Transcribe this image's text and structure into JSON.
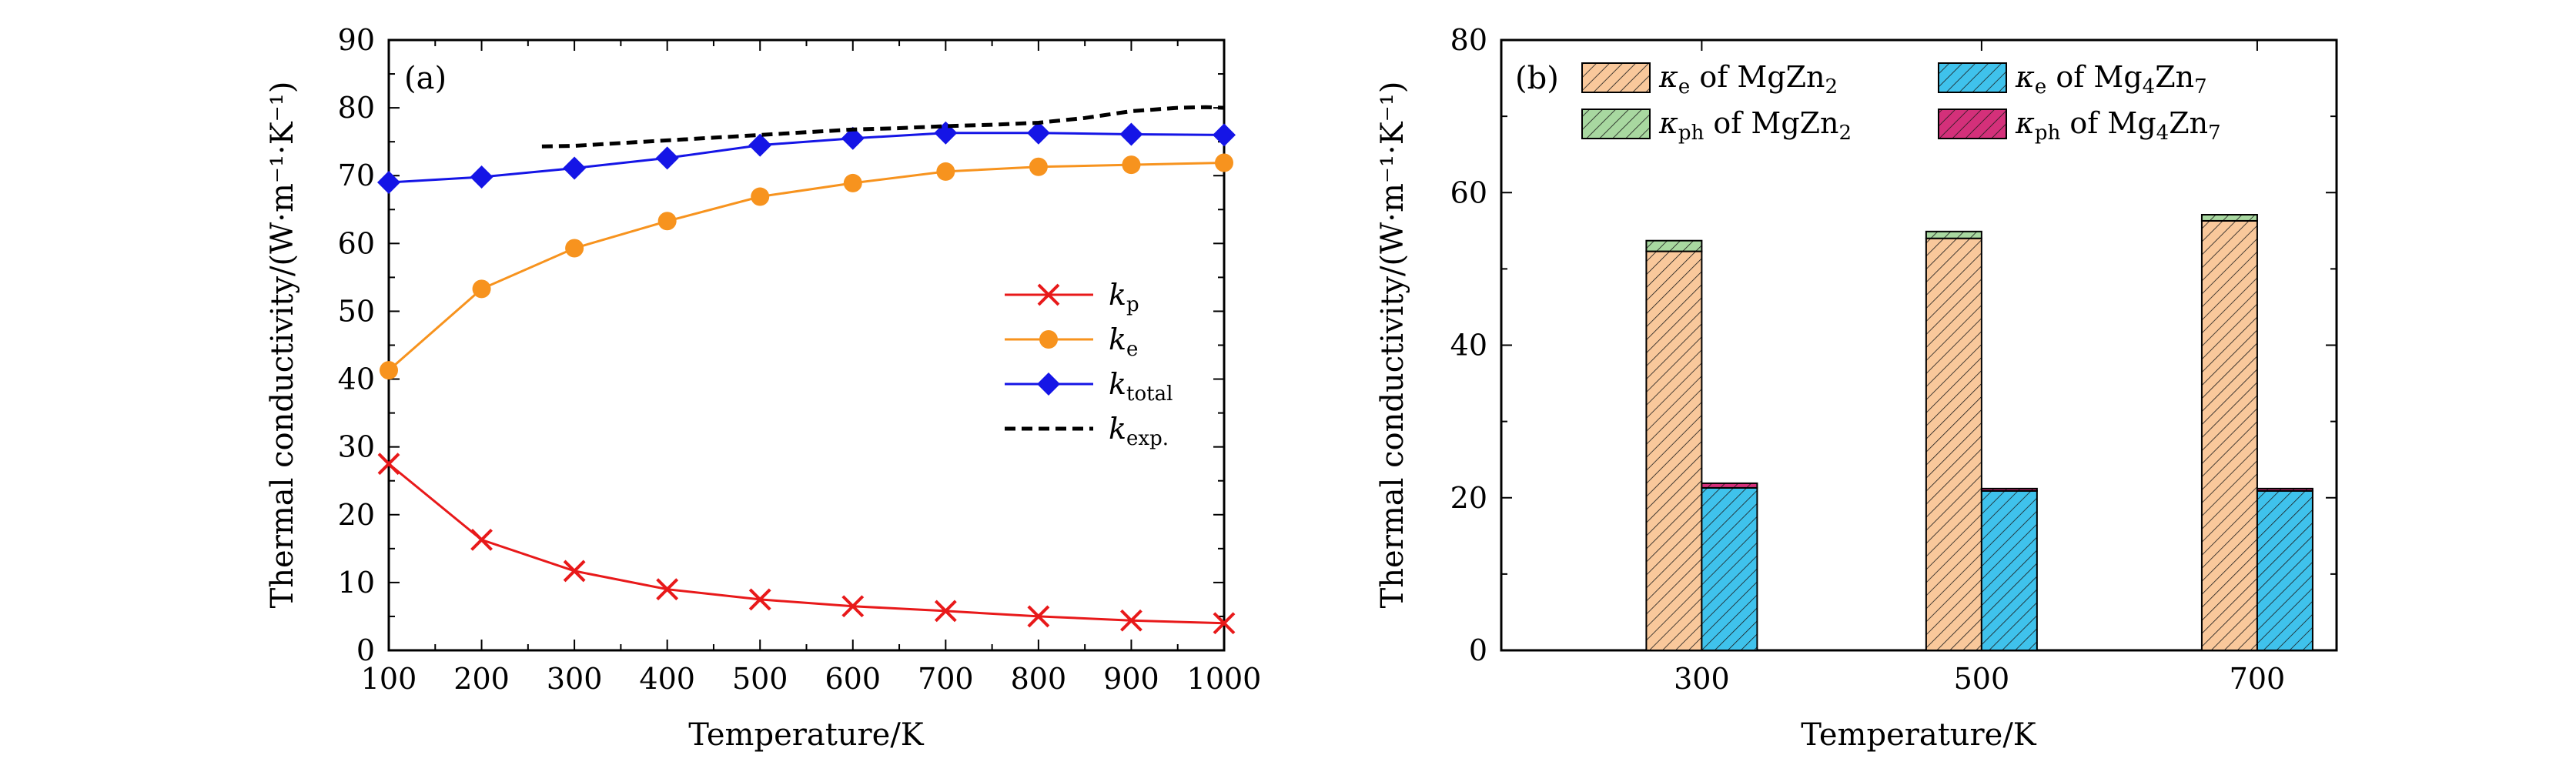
{
  "chart_data": [
    {
      "type": "line",
      "panel_label": "(a)",
      "xlabel": "Temperature/K",
      "ylabel": "Thermal conductivity/(W·m⁻¹·K⁻¹)",
      "xlim": [
        100,
        1000
      ],
      "ylim": [
        0,
        90
      ],
      "xticks": [
        100,
        200,
        300,
        400,
        500,
        600,
        700,
        800,
        900,
        1000
      ],
      "yticks": [
        0,
        10,
        20,
        30,
        40,
        50,
        60,
        70,
        80,
        90
      ],
      "legend_position": "center-right",
      "series": [
        {
          "name": "k_p",
          "label_main": "k",
          "label_sub": "p",
          "color": "#e8191a",
          "marker": "x",
          "x": [
            100,
            200,
            300,
            400,
            500,
            600,
            700,
            800,
            900,
            1000
          ],
          "y": [
            27.5,
            16.3,
            11.7,
            9.0,
            7.5,
            6.5,
            5.8,
            5.0,
            4.4,
            4.0
          ]
        },
        {
          "name": "k_e",
          "label_main": "k",
          "label_sub": "e",
          "color": "#f7931e",
          "marker": "circle",
          "x": [
            100,
            200,
            300,
            400,
            500,
            600,
            700,
            800,
            900,
            1000
          ],
          "y": [
            41.3,
            53.3,
            59.3,
            63.3,
            66.9,
            68.9,
            70.6,
            71.3,
            71.6,
            71.9
          ]
        },
        {
          "name": "k_total",
          "label_main": "k",
          "label_sub": "total",
          "color": "#1515e6",
          "marker": "diamond",
          "x": [
            100,
            200,
            300,
            400,
            500,
            600,
            700,
            800,
            900,
            1000
          ],
          "y": [
            69.0,
            69.8,
            71.1,
            72.6,
            74.5,
            75.5,
            76.3,
            76.3,
            76.1,
            76.0
          ]
        },
        {
          "name": "k_exp.",
          "label_main": "k",
          "label_sub": "exp.",
          "color": "#000000",
          "marker": "none",
          "dash": true,
          "x": [
            265,
            300,
            350,
            400,
            450,
            500,
            550,
            600,
            650,
            700,
            750,
            800,
            850,
            900,
            950,
            980,
            1000
          ],
          "y": [
            74.3,
            74.4,
            74.8,
            75.2,
            75.6,
            76.0,
            76.4,
            76.8,
            77.0,
            77.3,
            77.5,
            77.8,
            78.5,
            79.5,
            80.0,
            80.1,
            80.0
          ]
        }
      ]
    },
    {
      "type": "bar",
      "stacked": true,
      "panel_label": "(b)",
      "xlabel": "Temperature/K",
      "ylabel": "Thermal conductivity/(W·m⁻¹·K⁻¹)",
      "categories": [
        "300",
        "500",
        "700"
      ],
      "ylim": [
        0,
        80
      ],
      "yticks": [
        0,
        20,
        40,
        60,
        80
      ],
      "legend_position": "top",
      "groups": [
        {
          "name": "MgZn2",
          "segments": [
            {
              "name": "κe of MgZn2",
              "values": [
                52.3,
                54.0,
                56.3
              ],
              "color": "#f9c89b"
            },
            {
              "name": "κph of MgZn2",
              "values": [
                1.4,
                0.9,
                0.8
              ],
              "color": "#a8d8a0"
            }
          ]
        },
        {
          "name": "Mg4Zn7",
          "segments": [
            {
              "name": "κe of Mg4Zn7",
              "values": [
                21.3,
                20.9,
                20.9
              ],
              "color": "#3fc2ec"
            },
            {
              "name": "κph of Mg4Zn7",
              "values": [
                0.6,
                0.3,
                0.3
              ],
              "color": "#d4307a"
            }
          ]
        }
      ],
      "legend": [
        {
          "sym": "κ",
          "sub": "e",
          "text": " of MgZn",
          "sub2": "2",
          "text2": "",
          "color": "#f9c89b"
        },
        {
          "sym": "κ",
          "sub": "e",
          "text": " of Mg",
          "sub2": "4",
          "text2": "Zn",
          "sub3": "7",
          "color": "#3fc2ec"
        },
        {
          "sym": "κ",
          "sub": "ph",
          "text": " of MgZn",
          "sub2": "2",
          "text2": "",
          "color": "#a8d8a0"
        },
        {
          "sym": "κ",
          "sub": "ph",
          "text": " of Mg",
          "sub2": "4",
          "text2": "Zn",
          "sub3": "7",
          "color": "#d4307a"
        }
      ]
    }
  ]
}
